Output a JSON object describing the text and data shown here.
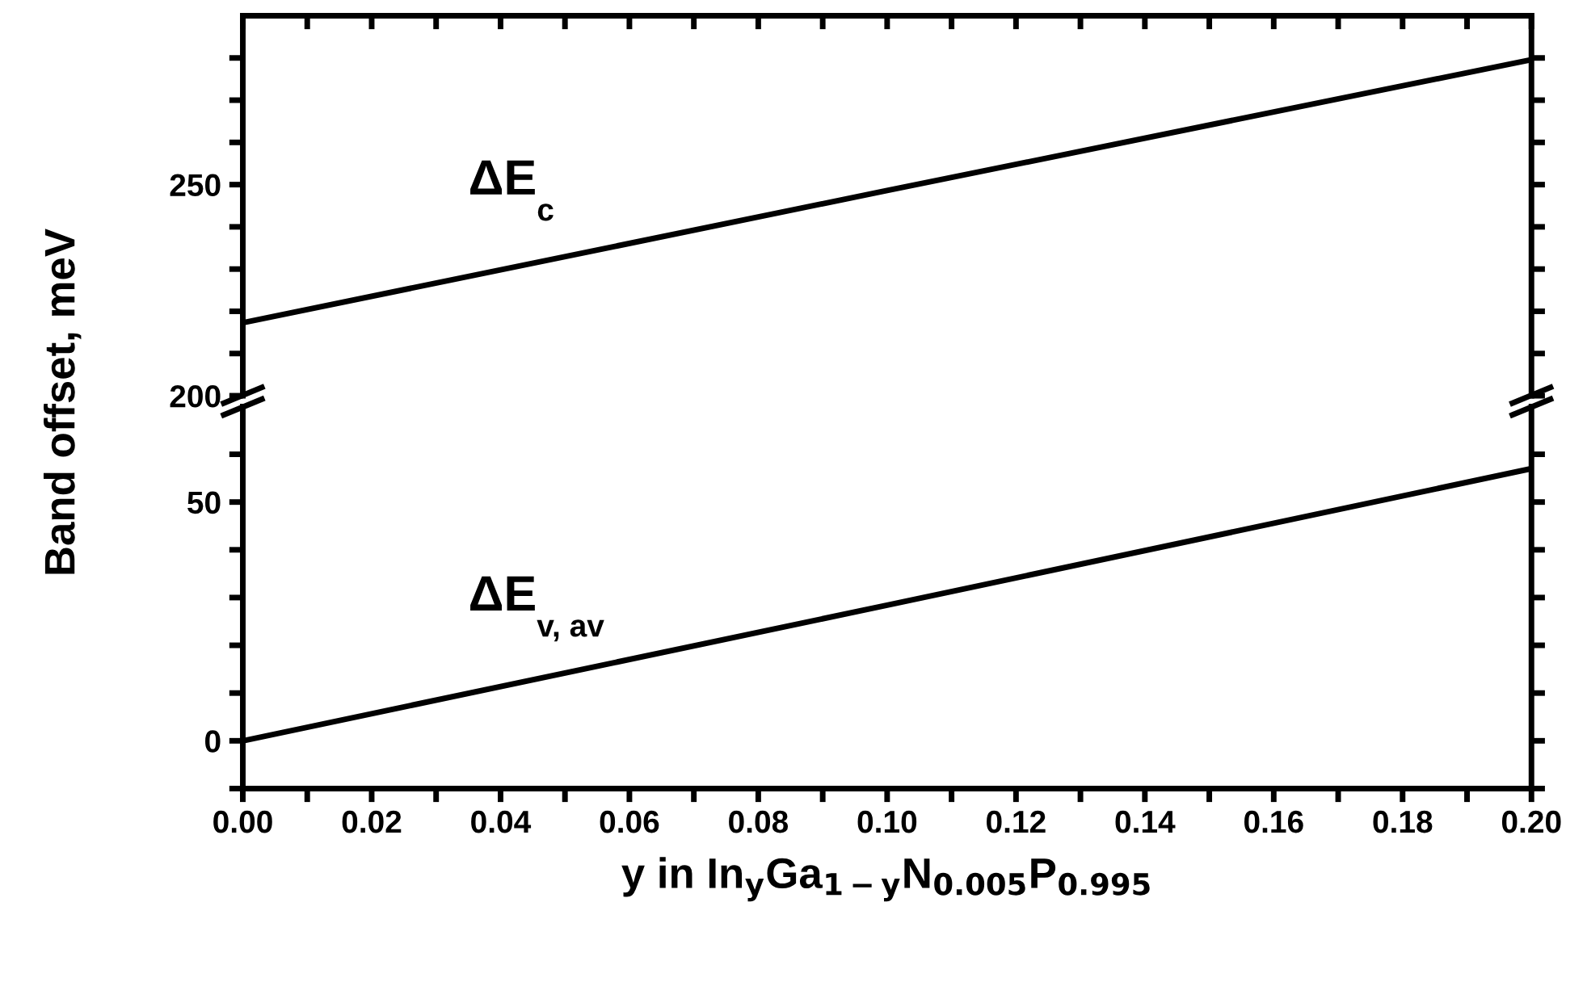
{
  "chart_data": [
    {
      "type": "line",
      "xlim": [
        0,
        0.2
      ],
      "ylim": [
        200,
        290
      ],
      "tick_labels": "y",
      "marker": "none",
      "line_style": "solid",
      "grid": false,
      "legend": false,
      "xticks": [
        {
          "value": 0,
          "label": null
        },
        {
          "value": 0.01,
          "label": null
        },
        {
          "value": 0.02,
          "label": null
        },
        {
          "value": 0.03,
          "label": null
        },
        {
          "value": 0.04,
          "label": null
        },
        {
          "value": 0.05,
          "label": null
        },
        {
          "value": 0.06,
          "label": null
        },
        {
          "value": 0.07,
          "label": null
        },
        {
          "value": 0.08,
          "label": null
        },
        {
          "value": 0.09,
          "label": null
        },
        {
          "value": 0.1,
          "label": null
        },
        {
          "value": 0.11,
          "label": null
        },
        {
          "value": 0.12,
          "label": null
        },
        {
          "value": 0.13,
          "label": null
        },
        {
          "value": 0.14,
          "label": null
        },
        {
          "value": 0.15,
          "label": null
        },
        {
          "value": 0.16,
          "label": null
        },
        {
          "value": 0.17,
          "label": null
        },
        {
          "value": 0.18,
          "label": null
        },
        {
          "value": 0.19,
          "label": null
        },
        {
          "value": 0.2,
          "label": null
        }
      ],
      "yticks": [
        200,
        {
          "value": 210,
          "label": null
        },
        {
          "value": 220,
          "label": null
        },
        {
          "value": 230,
          "label": null
        },
        {
          "value": 240,
          "label": null
        },
        250,
        {
          "value": 260,
          "label": null
        },
        {
          "value": 270,
          "label": null
        },
        {
          "value": 280,
          "label": null
        }
      ],
      "series": [
        {
          "name": "ΔE$_{c}$",
          "color": "#000000",
          "x": [
            0,
            0.1,
            0.2
          ],
          "values": [
            217.3,
            248.6,
            279.6
          ]
        }
      ]
    },
    {
      "type": "line",
      "xlim": [
        0,
        0.2
      ],
      "ylim": [
        -10,
        70
      ],
      "marker": "none",
      "line_style": "solid",
      "grid": false,
      "legend": false,
      "xlabel": "y in In$_{y}$Ga$_{1−y}$N$_{0.005}$P$_{0.995}$",
      "ylabel": "Band offset, meV",
      "xticks": [
        {
          "value": 0,
          "label": "0.00"
        },
        {
          "value": 0.01,
          "label": null
        },
        {
          "value": 0.02,
          "label": "0.02"
        },
        {
          "value": 0.03,
          "label": null
        },
        {
          "value": 0.04,
          "label": "0.04"
        },
        {
          "value": 0.05,
          "label": null
        },
        {
          "value": 0.06,
          "label": "0.06"
        },
        {
          "value": 0.07,
          "label": null
        },
        {
          "value": 0.08,
          "label": "0.08"
        },
        {
          "value": 0.09,
          "label": null
        },
        {
          "value": 0.1,
          "label": "0.10"
        },
        {
          "value": 0.11,
          "label": null
        },
        {
          "value": 0.12,
          "label": "0.12"
        },
        {
          "value": 0.13,
          "label": null
        },
        {
          "value": 0.14,
          "label": "0.14"
        },
        {
          "value": 0.15,
          "label": null
        },
        {
          "value": 0.16,
          "label": "0.16"
        },
        {
          "value": 0.17,
          "label": null
        },
        {
          "value": 0.18,
          "label": "0.18"
        },
        {
          "value": 0.19,
          "label": null
        },
        {
          "value": 0.2,
          "label": "0.20"
        }
      ],
      "yticks": [
        {
          "value": -10,
          "label": null
        },
        0,
        {
          "value": 10,
          "label": null
        },
        {
          "value": 20,
          "label": null
        },
        {
          "value": 30,
          "label": null
        },
        {
          "value": 40,
          "label": null
        },
        50,
        {
          "value": 60,
          "label": null
        }
      ],
      "series": [
        {
          "name": "ΔE$_{v, av}$",
          "color": "#000000",
          "x": [
            0,
            0.1,
            0.2
          ],
          "values": [
            0,
            28.4,
            57
          ]
        }
      ]
    }
  ]
}
